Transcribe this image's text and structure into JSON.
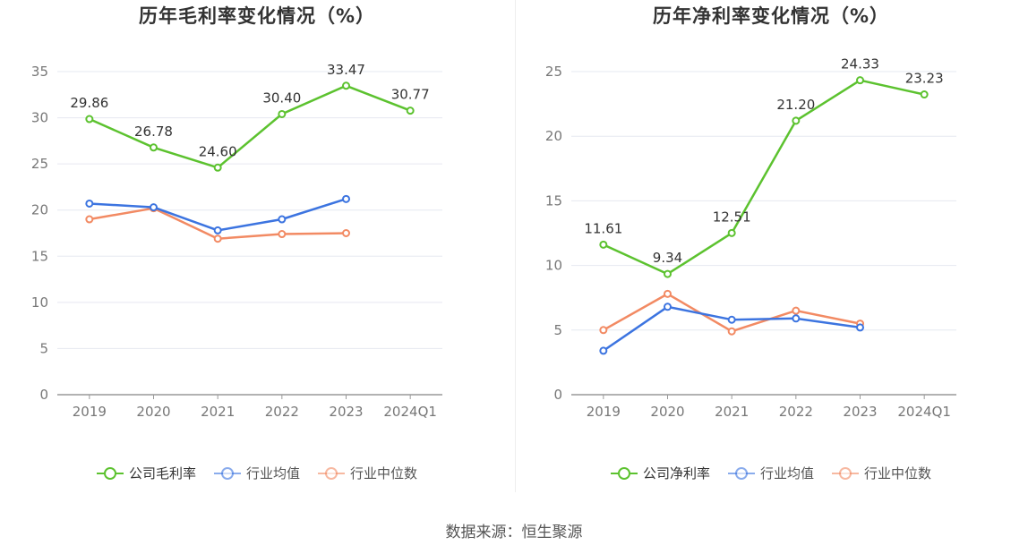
{
  "charts": [
    {
      "title": "历年毛利率变化情况（%）",
      "legend": [
        "公司毛利率",
        "行业均值",
        "行业中位数"
      ]
    },
    {
      "title": "历年净利率变化情况（%）",
      "legend": [
        "公司净利率",
        "行业均值",
        "行业中位数"
      ]
    }
  ],
  "source": "数据来源：恒生聚源",
  "colors": {
    "company": "#5cc22f",
    "industry_mean": "#3c74e0",
    "industry_median": "#f28a63",
    "grid": "#e6e8f0",
    "axis": "#999999"
  },
  "chart_data": [
    {
      "type": "line",
      "title": "历年毛利率变化情况（%）",
      "categories": [
        "2019",
        "2020",
        "2021",
        "2022",
        "2023",
        "2024Q1"
      ],
      "ylim": [
        0,
        35
      ],
      "yticks": [
        0,
        5,
        10,
        15,
        20,
        25,
        30,
        35
      ],
      "grid": true,
      "legend_position": "bottom",
      "series": [
        {
          "name": "公司毛利率",
          "color_key": "company",
          "values": [
            29.86,
            26.78,
            24.6,
            30.4,
            33.47,
            30.77
          ],
          "labels": [
            "29.86",
            "26.78",
            "24.60",
            "30.40",
            "33.47",
            "30.77"
          ]
        },
        {
          "name": "行业均值",
          "color_key": "industry_mean",
          "values": [
            20.7,
            20.3,
            17.8,
            19.0,
            21.2,
            null
          ]
        },
        {
          "name": "行业中位数",
          "color_key": "industry_median",
          "values": [
            19.0,
            20.2,
            16.9,
            17.4,
            17.5,
            null
          ]
        }
      ]
    },
    {
      "type": "line",
      "title": "历年净利率变化情况（%）",
      "categories": [
        "2019",
        "2020",
        "2021",
        "2022",
        "2023",
        "2024Q1"
      ],
      "ylim": [
        0,
        25
      ],
      "yticks": [
        0,
        5,
        10,
        15,
        20,
        25
      ],
      "grid": true,
      "legend_position": "bottom",
      "series": [
        {
          "name": "公司净利率",
          "color_key": "company",
          "values": [
            11.61,
            9.34,
            12.51,
            21.2,
            24.33,
            23.23
          ],
          "labels": [
            "11.61",
            "9.34",
            "12.51",
            "21.20",
            "24.33",
            "23.23"
          ]
        },
        {
          "name": "行业均值",
          "color_key": "industry_mean",
          "values": [
            3.4,
            6.8,
            5.8,
            5.9,
            5.2,
            null
          ]
        },
        {
          "name": "行业中位数",
          "color_key": "industry_median",
          "values": [
            5.0,
            7.8,
            4.9,
            6.5,
            5.5,
            null
          ]
        }
      ]
    }
  ]
}
